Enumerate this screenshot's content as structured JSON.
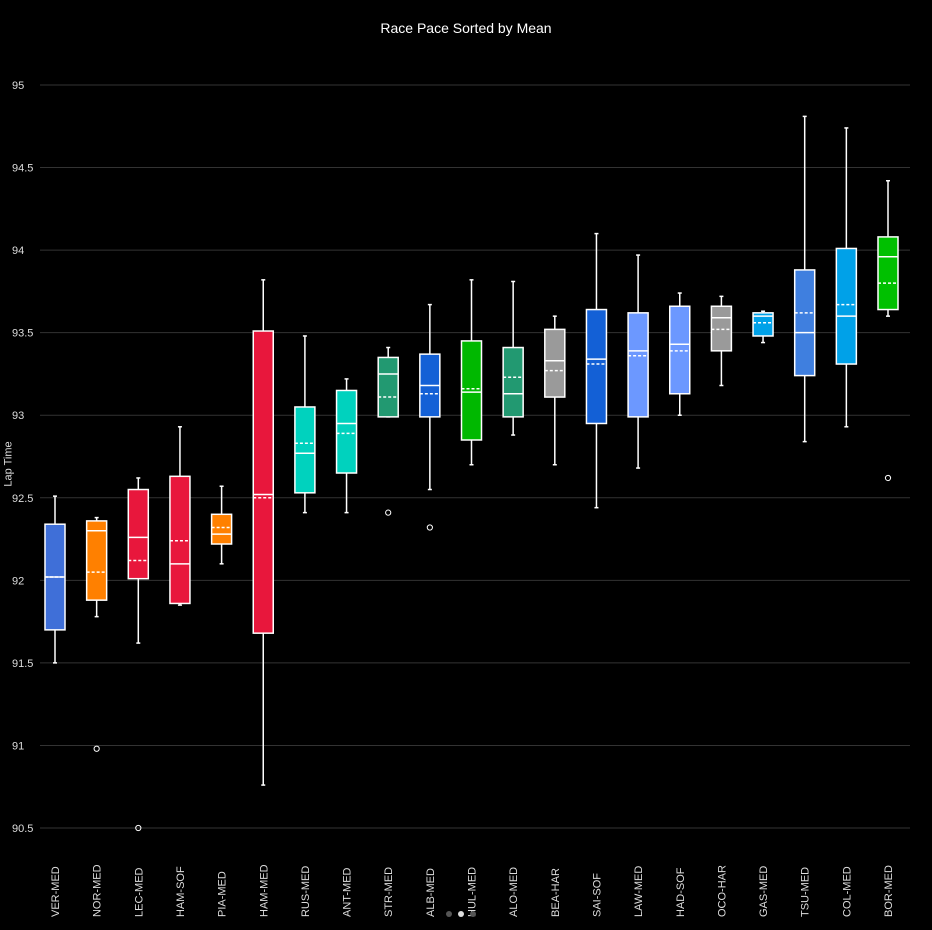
{
  "chart_data": {
    "type": "box",
    "title": "Race Pace Sorted by Mean",
    "ylabel": "Lap Time",
    "ylim": [
      90.5,
      95
    ],
    "yticks": [
      90.5,
      91,
      91.5,
      92,
      92.5,
      93,
      93.5,
      94,
      94.5,
      95
    ],
    "grid": true,
    "series": [
      {
        "label": "VER-MED",
        "color": "#3F6FD8",
        "min": 91.5,
        "q1": 91.7,
        "median": 92.02,
        "mean": 92.02,
        "q3": 92.34,
        "max": 92.51,
        "outliers": []
      },
      {
        "label": "NOR-MED",
        "color": "#FF8000",
        "min": 91.78,
        "q1": 91.88,
        "median": 92.3,
        "mean": 92.05,
        "q3": 92.36,
        "max": 92.38,
        "outliers": [
          90.98
        ]
      },
      {
        "label": "LEC-MED",
        "color": "#E8173C",
        "min": 91.62,
        "q1": 92.01,
        "median": 92.26,
        "mean": 92.12,
        "q3": 92.55,
        "max": 92.62,
        "outliers": [
          90.5
        ]
      },
      {
        "label": "HAM-SOF",
        "color": "#E8173C",
        "min": 91.85,
        "q1": 91.86,
        "median": 92.1,
        "mean": 92.24,
        "q3": 92.63,
        "max": 92.93,
        "outliers": []
      },
      {
        "label": "PIA-MED",
        "color": "#FF8000",
        "min": 92.1,
        "q1": 92.22,
        "median": 92.28,
        "mean": 92.32,
        "q3": 92.4,
        "max": 92.57,
        "outliers": []
      },
      {
        "label": "HAM-MED",
        "color": "#E8173C",
        "min": 90.76,
        "q1": 91.68,
        "median": 92.52,
        "mean": 92.5,
        "q3": 93.51,
        "max": 93.82,
        "outliers": []
      },
      {
        "label": "RUS-MED",
        "color": "#00D2BE",
        "min": 92.41,
        "q1": 92.53,
        "median": 92.77,
        "mean": 92.83,
        "q3": 93.05,
        "max": 93.48,
        "outliers": []
      },
      {
        "label": "ANT-MED",
        "color": "#00D2BE",
        "min": 92.41,
        "q1": 92.65,
        "median": 92.95,
        "mean": 92.89,
        "q3": 93.15,
        "max": 93.22,
        "outliers": []
      },
      {
        "label": "STR-MED",
        "color": "#229971",
        "min": 92.99,
        "q1": 92.99,
        "median": 93.25,
        "mean": 93.11,
        "q3": 93.35,
        "max": 93.41,
        "outliers": [
          92.41
        ]
      },
      {
        "label": "ALB-MED",
        "color": "#1360D6",
        "min": 92.55,
        "q1": 92.99,
        "median": 93.18,
        "mean": 93.13,
        "q3": 93.37,
        "max": 93.67,
        "outliers": [
          92.32
        ]
      },
      {
        "label": "HUL-MED",
        "color": "#00B800",
        "min": 92.7,
        "q1": 92.85,
        "median": 93.14,
        "mean": 93.16,
        "q3": 93.45,
        "max": 93.82,
        "outliers": []
      },
      {
        "label": "ALO-MED",
        "color": "#229971",
        "min": 92.88,
        "q1": 92.99,
        "median": 93.13,
        "mean": 93.23,
        "q3": 93.41,
        "max": 93.81,
        "outliers": []
      },
      {
        "label": "BEA-HAR",
        "color": "#9A9A9A",
        "min": 92.7,
        "q1": 93.11,
        "median": 93.33,
        "mean": 93.27,
        "q3": 93.52,
        "max": 93.6,
        "outliers": []
      },
      {
        "label": "SAI-SOF",
        "color": "#1360D6",
        "min": 92.44,
        "q1": 92.95,
        "median": 93.34,
        "mean": 93.31,
        "q3": 93.64,
        "max": 94.1,
        "outliers": []
      },
      {
        "label": "LAW-MED",
        "color": "#6C98FF",
        "min": 92.68,
        "q1": 92.99,
        "median": 93.39,
        "mean": 93.36,
        "q3": 93.62,
        "max": 93.97,
        "outliers": []
      },
      {
        "label": "HAD-SOF",
        "color": "#6C98FF",
        "min": 93.0,
        "q1": 93.13,
        "median": 93.43,
        "mean": 93.39,
        "q3": 93.66,
        "max": 93.74,
        "outliers": []
      },
      {
        "label": "OCO-HAR",
        "color": "#9A9A9A",
        "min": 93.18,
        "q1": 93.39,
        "median": 93.59,
        "mean": 93.52,
        "q3": 93.66,
        "max": 93.72,
        "outliers": []
      },
      {
        "label": "GAS-MED",
        "color": "#00A1E8",
        "min": 93.44,
        "q1": 93.48,
        "median": 93.6,
        "mean": 93.56,
        "q3": 93.62,
        "max": 93.63,
        "outliers": []
      },
      {
        "label": "TSU-MED",
        "color": "#3F7FDF",
        "min": 92.84,
        "q1": 93.24,
        "median": 93.5,
        "mean": 93.62,
        "q3": 93.88,
        "max": 94.81,
        "outliers": []
      },
      {
        "label": "COL-MED",
        "color": "#00A1E8",
        "min": 92.93,
        "q1": 93.31,
        "median": 93.6,
        "mean": 93.67,
        "q3": 94.01,
        "max": 94.74,
        "outliers": []
      },
      {
        "label": "BOR-MED",
        "color": "#00C000",
        "min": 93.6,
        "q1": 93.64,
        "median": 93.96,
        "mean": 93.8,
        "q3": 94.08,
        "max": 94.42,
        "outliers": [
          92.62
        ]
      }
    ]
  },
  "pagination": {
    "count": 3,
    "active": 1
  }
}
